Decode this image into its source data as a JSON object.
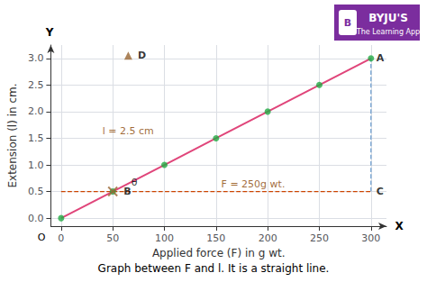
{
  "chart_data": {
    "type": "line",
    "title": "Graph between F and l. It is a straight line.",
    "xlabel": "Applied force (F) in g wt.",
    "ylabel": "Extension (l) in cm.",
    "x": [
      0,
      50,
      100,
      150,
      200,
      250,
      300
    ],
    "series": [
      {
        "type": "line",
        "color": "#e0457a",
        "values": [
          0,
          0.5,
          1.0,
          1.5,
          2.0,
          2.5,
          3.0
        ]
      },
      {
        "type": "scatter",
        "color": "#22aa44",
        "values": [
          0,
          0.5,
          1.0,
          1.5,
          2.0,
          2.5,
          3.0
        ]
      }
    ],
    "xlim": [
      -10,
      315
    ],
    "ylim": [
      -0.15,
      3.25
    ],
    "xticks": [
      0,
      50,
      100,
      150,
      200,
      250,
      300
    ],
    "yticks": [
      {
        "value": 0,
        "label": "0.0"
      },
      0.5,
      {
        "value": 1.0,
        "label": "1.0"
      },
      1.5,
      {
        "value": 2.0,
        "label": "2.0"
      },
      2.5,
      {
        "value": 3.0,
        "label": "3.0"
      }
    ],
    "grid": true,
    "segments": [
      {
        "x": [
          0,
          300
        ],
        "y": [
          0.5,
          0.5
        ],
        "color": "#cc4400",
        "line_style": "dashed"
      },
      {
        "x": [
          300,
          300
        ],
        "y": [
          0.5,
          3.0
        ],
        "color": "#6699cc",
        "line_style": "dashed"
      }
    ],
    "point_labels": [
      {
        "text": "A",
        "x": 300,
        "y": 3.0
      },
      {
        "text": "B",
        "x": 50,
        "y": 0.5,
        "marker": "x",
        "color": "#996633"
      },
      {
        "text": "C",
        "x": 300,
        "y": 0.5
      },
      {
        "text": "D",
        "x": 65,
        "y": 3.05,
        "marker": "triangle",
        "color": "#996633"
      }
    ],
    "annotations": [
      {
        "text": "θ",
        "x": 68,
        "y": 0.57
      },
      {
        "text": "F = 250g wt.",
        "x": 155,
        "y": 0.55,
        "color": "#884400"
      },
      {
        "text": "l = 2.5 cm",
        "x": 40,
        "y": 1.55,
        "color": "#884400"
      }
    ],
    "axis_marks": {
      "origin": "O",
      "x": "X",
      "y": "Y"
    },
    "logo": {
      "text": "BYJU'S",
      "subtitle": "The Learning App",
      "icon": "B",
      "color": "#7b2d9e"
    }
  }
}
